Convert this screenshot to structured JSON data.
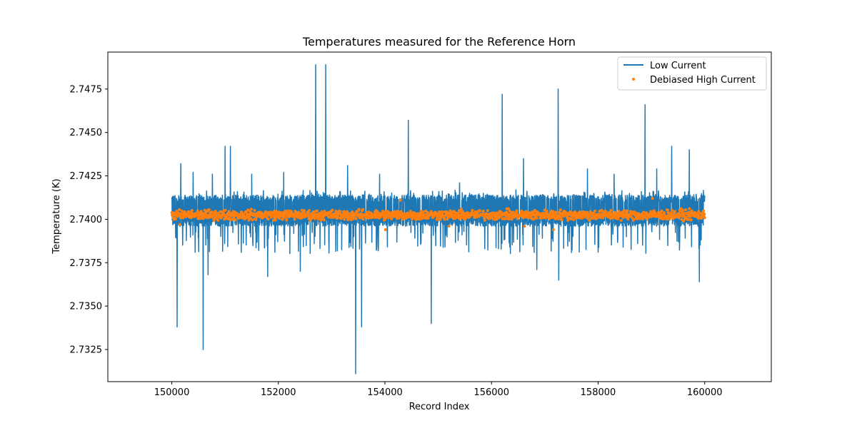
{
  "chart_data": {
    "type": "line",
    "title": "Temperatures measured for the Reference Horn",
    "xlabel": "Record Index",
    "ylabel": "Temperature (K)",
    "xlim": [
      148800,
      161250
    ],
    "ylim": [
      2.73065,
      2.74963
    ],
    "x_ticks": [
      150000,
      152000,
      154000,
      156000,
      158000,
      160000
    ],
    "x_tick_labels": [
      "150000",
      "152000",
      "154000",
      "156000",
      "158000",
      "160000"
    ],
    "y_ticks": [
      2.7325,
      2.735,
      2.7375,
      2.74,
      2.7425,
      2.745,
      2.7475
    ],
    "y_tick_labels": [
      "2.7325",
      "2.7350",
      "2.7375",
      "2.7400",
      "2.7425",
      "2.7450",
      "2.7475"
    ],
    "legend_position": "top-right",
    "series": [
      {
        "name": "Low Current",
        "style": "line",
        "color": "#1f77b4",
        "x_range": [
          150000,
          160000
        ],
        "band_low": 2.7396,
        "band_high": 2.7414,
        "spikes": [
          {
            "x": 150100,
            "y": 2.7338
          },
          {
            "x": 150170,
            "y": 2.7432
          },
          {
            "x": 150400,
            "y": 2.7427
          },
          {
            "x": 150590,
            "y": 2.7325
          },
          {
            "x": 150680,
            "y": 2.7368
          },
          {
            "x": 150760,
            "y": 2.7426
          },
          {
            "x": 151000,
            "y": 2.7442
          },
          {
            "x": 151100,
            "y": 2.7442
          },
          {
            "x": 151500,
            "y": 2.7426
          },
          {
            "x": 151800,
            "y": 2.7367
          },
          {
            "x": 152100,
            "y": 2.7427
          },
          {
            "x": 152410,
            "y": 2.737
          },
          {
            "x": 152700,
            "y": 2.7489
          },
          {
            "x": 152890,
            "y": 2.7489
          },
          {
            "x": 153300,
            "y": 2.7431
          },
          {
            "x": 153450,
            "y": 2.7311
          },
          {
            "x": 153560,
            "y": 2.7338
          },
          {
            "x": 153900,
            "y": 2.7426
          },
          {
            "x": 154440,
            "y": 2.7457
          },
          {
            "x": 154870,
            "y": 2.734
          },
          {
            "x": 155400,
            "y": 2.7421
          },
          {
            "x": 156200,
            "y": 2.7472
          },
          {
            "x": 156600,
            "y": 2.7435
          },
          {
            "x": 156850,
            "y": 2.7371
          },
          {
            "x": 157250,
            "y": 2.7475
          },
          {
            "x": 157260,
            "y": 2.7365
          },
          {
            "x": 157800,
            "y": 2.7429
          },
          {
            "x": 158300,
            "y": 2.7426
          },
          {
            "x": 158880,
            "y": 2.7466
          },
          {
            "x": 159100,
            "y": 2.7429
          },
          {
            "x": 159380,
            "y": 2.7442
          },
          {
            "x": 159710,
            "y": 2.744
          },
          {
            "x": 159900,
            "y": 2.7364
          }
        ]
      },
      {
        "name": "Debiased High Current",
        "style": "scatter",
        "color": "#ff7f0e",
        "x_range": [
          150000,
          160000
        ],
        "center": 2.74025,
        "spread": 0.0003,
        "outliers": [
          {
            "x": 150150,
            "y": 2.7397
          },
          {
            "x": 154010,
            "y": 2.7394
          },
          {
            "x": 154290,
            "y": 2.7411
          },
          {
            "x": 155200,
            "y": 2.7396
          },
          {
            "x": 156620,
            "y": 2.7396
          },
          {
            "x": 157160,
            "y": 2.7394
          },
          {
            "x": 159020,
            "y": 2.7412
          }
        ]
      }
    ]
  }
}
